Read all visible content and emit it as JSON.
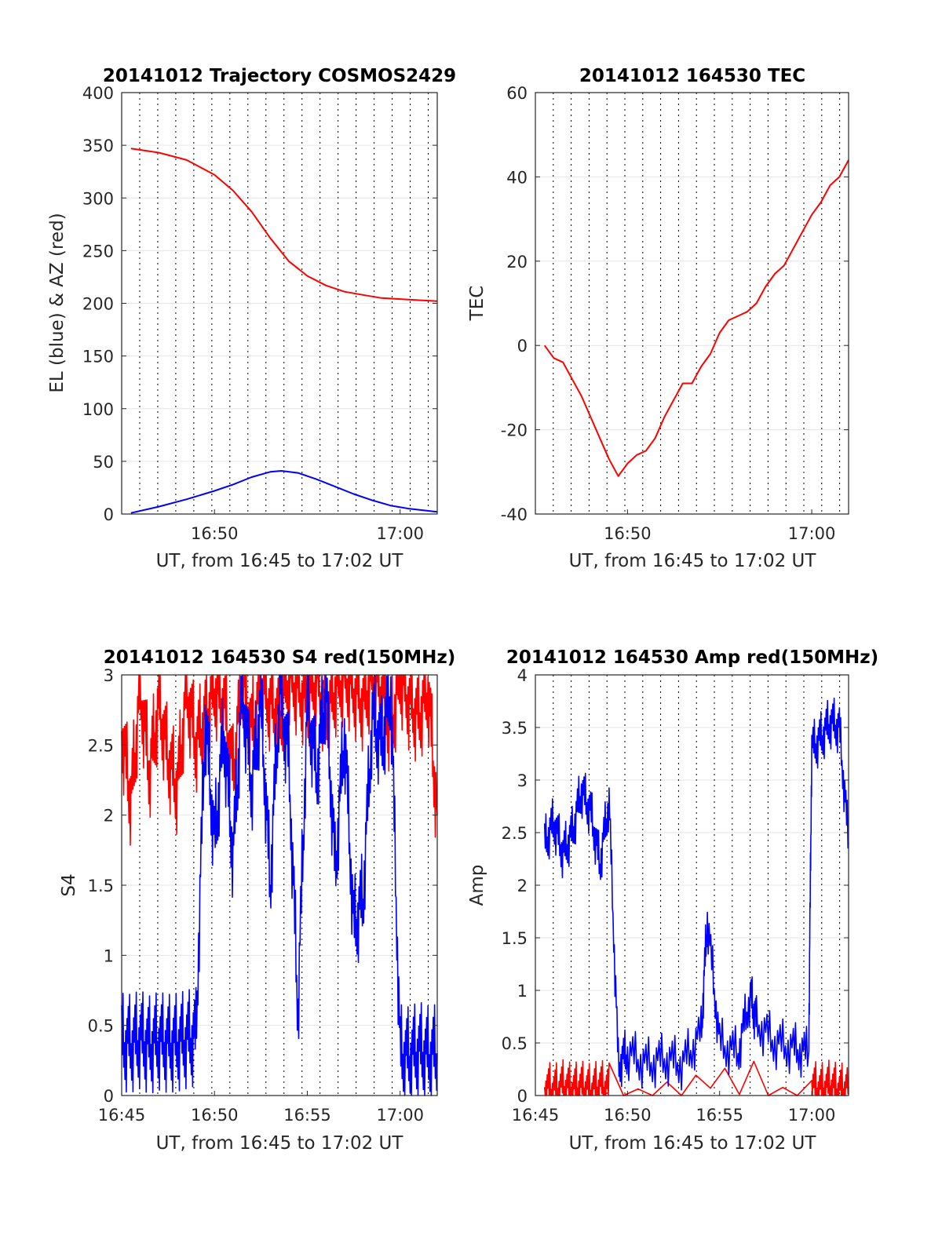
{
  "colors": {
    "az": "#ff0000",
    "el": "#0000ff",
    "tec": "#ff0000",
    "s4_red": "#ff0000",
    "s4_blue": "#0000ff",
    "amp_red": "#ff0000",
    "amp_blue": "#0000ff",
    "grid": "#e6e6e6",
    "axes": "#262626"
  },
  "chart_data": [
    {
      "type": "line",
      "title": "20141012 Trajectory COSMOS2429",
      "xlabel": "UT, from 16:45 to 17:02 UT",
      "ylabel": "EL (blue) & AZ (red)",
      "xlim": [
        "16:45",
        "17:02"
      ],
      "ylim": [
        0,
        400
      ],
      "xticks": [
        {
          "t": "16:50",
          "label": "16:50"
        },
        {
          "t": "17:00",
          "label": "17:00"
        }
      ],
      "yticks": [
        0,
        50,
        100,
        150,
        200,
        250,
        300,
        350,
        400
      ],
      "grid": true,
      "series": [
        {
          "color": "red",
          "x": [
            "16:45:30",
            "16:47:00",
            "16:48:30",
            "16:50:00",
            "16:51:00",
            "16:52:00",
            "16:53:00",
            "16:54:00",
            "16:55:00",
            "16:56:00",
            "16:57:00",
            "16:58:00",
            "16:59:00",
            "17:00:00",
            "17:01:00",
            "17:02:00"
          ],
          "y": [
            347,
            343,
            336,
            322,
            307,
            287,
            262,
            240,
            226,
            217,
            211,
            208,
            205,
            204,
            203,
            202
          ]
        },
        {
          "color": "blue",
          "x": [
            "16:45:30",
            "16:47:00",
            "16:48:30",
            "16:50:00",
            "16:51:00",
            "16:52:00",
            "16:53:00",
            "16:53:36",
            "16:54:30",
            "16:55:30",
            "16:56:30",
            "16:57:30",
            "16:58:30",
            "16:59:30",
            "17:00:30",
            "17:02:00"
          ],
          "y": [
            1,
            7,
            14,
            22,
            28,
            35,
            40,
            41,
            39,
            33,
            26,
            19,
            13,
            8,
            5,
            2
          ]
        }
      ]
    },
    {
      "type": "line",
      "title": "20141012 164530 TEC",
      "xlabel": "UT, from 16:45 to 17:02 UT",
      "ylabel": "TEC",
      "xlim": [
        "16:45",
        "17:02"
      ],
      "ylim": [
        -40,
        60
      ],
      "xticks": [
        {
          "t": "16:50",
          "label": "16:50"
        },
        {
          "t": "17:00",
          "label": "17:00"
        }
      ],
      "yticks": [
        -40,
        -20,
        0,
        20,
        40,
        60
      ],
      "grid": true,
      "series": [
        {
          "color": "red",
          "x": [
            "16:45:30",
            "16:46:00",
            "16:46:30",
            "16:47:00",
            "16:47:30",
            "16:48:00",
            "16:48:30",
            "16:49:00",
            "16:49:30",
            "16:50:00",
            "16:50:30",
            "16:51:00",
            "16:51:30",
            "16:52:00",
            "16:52:30",
            "16:53:00",
            "16:53:30",
            "16:54:00",
            "16:54:30",
            "16:55:00",
            "16:55:30",
            "16:56:00",
            "16:56:30",
            "16:57:00",
            "16:57:30",
            "16:58:00",
            "16:58:30",
            "16:59:00",
            "16:59:30",
            "17:00:00",
            "17:00:30",
            "17:01:00",
            "17:01:30",
            "17:02:00"
          ],
          "y": [
            0,
            -3,
            -4,
            -8,
            -12,
            -17,
            -22,
            -27,
            -31,
            -28,
            -26,
            -25,
            -22,
            -17,
            -13,
            -9,
            -9,
            -5,
            -2,
            3,
            6,
            7,
            8,
            10,
            14,
            17,
            19,
            23,
            27,
            31,
            34,
            38,
            40,
            44
          ]
        }
      ]
    },
    {
      "type": "line",
      "title": "20141012 164530 S4 red(150MHz)",
      "xlabel": "UT, from 16:45 to 17:02 UT",
      "ylabel": "S4",
      "xlim": [
        "16:45",
        "17:02"
      ],
      "ylim": [
        0,
        3
      ],
      "xticks": [
        {
          "t": "16:45",
          "label": "16:45"
        },
        {
          "t": "16:50",
          "label": "16:50"
        },
        {
          "t": "16:55",
          "label": "16:55"
        },
        {
          "t": "17:00",
          "label": "17:00"
        }
      ],
      "yticks": [
        0,
        0.5,
        1,
        1.5,
        2,
        2.5,
        3
      ],
      "grid": true,
      "series": [
        {
          "color": "red",
          "x": [
            "16:45:00",
            "16:45:30",
            "16:46:00",
            "16:46:30",
            "16:47:00",
            "16:47:30",
            "16:48:00",
            "16:48:30",
            "16:49:00",
            "16:49:30",
            "16:50:00",
            "16:50:30",
            "16:51:00",
            "16:51:30",
            "16:52:00",
            "16:52:30",
            "16:53:00",
            "16:53:30",
            "16:54:00",
            "16:54:30",
            "16:55:00",
            "16:55:30",
            "16:56:00",
            "16:56:30",
            "16:57:00",
            "16:57:30",
            "16:58:00",
            "16:58:30",
            "16:59:00",
            "16:59:30",
            "17:00:00",
            "17:00:30",
            "17:01:00",
            "17:01:30",
            "17:02:00"
          ],
          "y": [
            2.6,
            2.1,
            2.9,
            2.3,
            2.8,
            2.4,
            2.2,
            2.9,
            2.5,
            2.7,
            2.9,
            2.8,
            2.3,
            3.0,
            2.6,
            2.9,
            2.8,
            2.7,
            3.0,
            2.9,
            2.8,
            3.0,
            2.7,
            2.9,
            3.0,
            2.9,
            2.8,
            3.0,
            2.9,
            2.6,
            3.0,
            2.8,
            2.7,
            2.9,
            2.0
          ]
        },
        {
          "color": "blue",
          "x": [
            "16:45:00",
            "16:45:30",
            "16:46:00",
            "16:46:30",
            "16:47:00",
            "16:47:30",
            "16:48:00",
            "16:48:30",
            "16:49:00",
            "16:49:30",
            "16:50:00",
            "16:50:30",
            "16:51:00",
            "16:51:30",
            "16:52:00",
            "16:52:30",
            "16:53:00",
            "16:53:30",
            "16:54:00",
            "16:54:30",
            "16:55:00",
            "16:55:30",
            "16:56:00",
            "16:56:30",
            "16:57:00",
            "16:57:30",
            "16:58:00",
            "16:58:30",
            "16:59:00",
            "16:59:30",
            "17:00:00",
            "17:00:30",
            "17:01:00",
            "17:01:30",
            "17:02:00"
          ],
          "y": [
            0.38,
            0.37,
            0.4,
            0.36,
            0.39,
            0.37,
            0.38,
            0.4,
            0.42,
            2.7,
            1.8,
            2.6,
            1.7,
            2.9,
            2.2,
            2.8,
            1.5,
            2.9,
            2.4,
            0.6,
            2.8,
            2.3,
            2.9,
            1.6,
            2.6,
            1.2,
            1.4,
            2.7,
            2.5,
            2.9,
            0.3,
            0.28,
            0.32,
            0.29,
            0.3
          ]
        }
      ]
    },
    {
      "type": "line",
      "title": "20141012 164530 Amp red(150MHz)",
      "xlabel": "UT, from 16:45 to 17:02 UT",
      "ylabel": "Amp",
      "xlim": [
        "16:45",
        "17:02"
      ],
      "ylim": [
        0,
        4
      ],
      "xticks": [
        {
          "t": "16:45",
          "label": "16:45"
        },
        {
          "t": "16:50",
          "label": "16:50"
        },
        {
          "t": "16:55",
          "label": "16:55"
        },
        {
          "t": "17:00",
          "label": "17:00"
        }
      ],
      "yticks": [
        0,
        0.5,
        1,
        1.5,
        2,
        2.5,
        3,
        3.5,
        4
      ],
      "grid": true,
      "series": [
        {
          "color": "red",
          "x": [
            "16:45:30",
            "16:46:00",
            "16:46:30",
            "16:47:00",
            "16:47:30",
            "16:48:00",
            "16:48:30",
            "16:49:00",
            "17:00:00",
            "17:00:30",
            "17:01:00",
            "17:01:30",
            "17:02:00"
          ],
          "y": [
            0.08,
            0.05,
            0.09,
            0.06,
            0.08,
            0.05,
            0.09,
            0.06,
            0.08,
            0.06,
            0.09,
            0.05,
            0.08
          ]
        },
        {
          "color": "blue",
          "x": [
            "16:45:30",
            "16:46:00",
            "16:46:30",
            "16:47:00",
            "16:47:30",
            "16:48:00",
            "16:48:30",
            "16:49:00",
            "16:49:30",
            "16:50:00",
            "16:51:00",
            "16:52:00",
            "16:53:00",
            "16:54:00",
            "16:54:20",
            "16:55:00",
            "16:56:00",
            "16:56:40",
            "16:57:00",
            "16:58:00",
            "16:59:00",
            "16:59:50",
            "17:00:00",
            "17:00:30",
            "17:01:00",
            "17:01:30",
            "17:02:00"
          ],
          "y": [
            2.4,
            2.6,
            2.3,
            2.5,
            2.9,
            2.7,
            2.2,
            2.8,
            0.3,
            0.4,
            0.3,
            0.35,
            0.3,
            0.6,
            1.68,
            0.5,
            0.4,
            0.95,
            0.7,
            0.5,
            0.45,
            0.4,
            3.3,
            3.4,
            3.55,
            3.5,
            2.4
          ]
        }
      ]
    }
  ]
}
